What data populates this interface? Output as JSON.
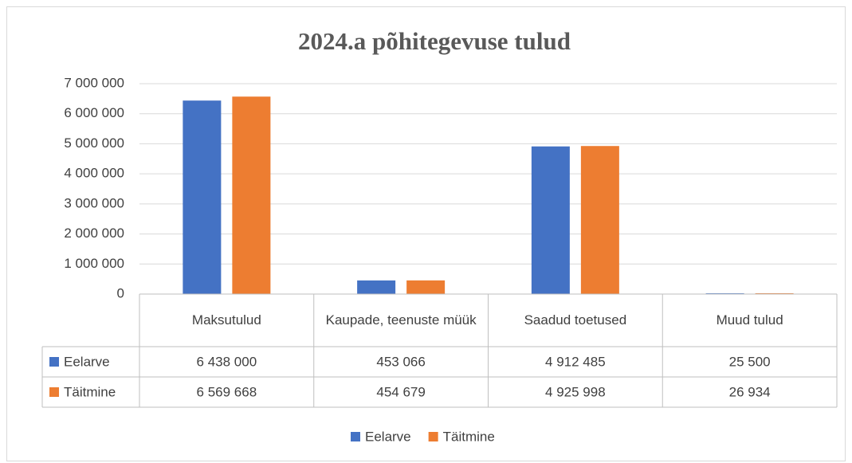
{
  "chart_data": {
    "type": "bar",
    "title": "2024.a põhitegevuse tulud",
    "categories": [
      "Maksutulud",
      "Kaupade, teenuste müük",
      "Saadud toetused",
      "Muud tulud"
    ],
    "series": [
      {
        "name": "Eelarve",
        "color": "#4472c4",
        "values": [
          6438000,
          453066,
          4912485,
          25500
        ],
        "value_labels": [
          "6 438 000",
          "453 066",
          "4 912 485",
          "25 500"
        ]
      },
      {
        "name": "Täitmine",
        "color": "#ed7d31",
        "values": [
          6569668,
          454679,
          4925998,
          26934
        ],
        "value_labels": [
          "6 569 668",
          "454 679",
          "4 925 998",
          "26 934"
        ]
      }
    ],
    "ylim": [
      0,
      7000000
    ],
    "yticks": [
      0,
      {
        "value": 1000000,
        "label": "1 000 000"
      },
      {
        "value": 2000000,
        "label": "2 000 000"
      },
      {
        "value": 3000000,
        "label": "3 000 000"
      },
      {
        "value": 4000000,
        "label": "4 000 000"
      },
      {
        "value": 5000000,
        "label": "5 000 000"
      },
      {
        "value": 6000000,
        "label": "6 000 000"
      },
      {
        "value": 7000000,
        "label": "7 000 000"
      }
    ],
    "grid": true,
    "legend": "bottom"
  }
}
